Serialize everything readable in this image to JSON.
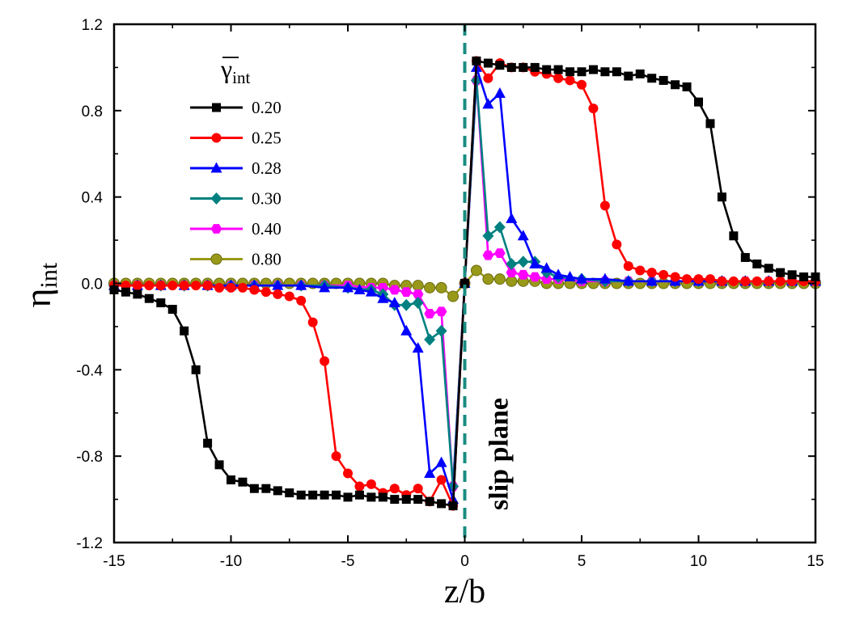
{
  "chart_data": {
    "type": "line",
    "title": "",
    "xlabel": "z/b",
    "ylabel": {
      "main": "η",
      "sub": "int"
    },
    "xlim": [
      -15,
      15
    ],
    "ylim": [
      -1.2,
      1.2
    ],
    "xticks": [
      -15,
      -10,
      -5,
      0,
      5,
      10,
      15
    ],
    "xtick_labels": [
      "-15",
      "-10",
      "-5",
      "0",
      "5",
      "10",
      "15"
    ],
    "yticks": [
      -1.2,
      -0.8,
      -0.4,
      0.0,
      0.4,
      0.8,
      1.2
    ],
    "ytick_labels": [
      "-1.2",
      "-0.8",
      "-0.4",
      "0.0",
      "0.4",
      "0.8",
      "1.2"
    ],
    "grid": false,
    "legend": {
      "title": {
        "main": "γ",
        "sub": "int"
      },
      "placement": "top-left"
    },
    "annotation": {
      "text": "slip plane",
      "x": 0,
      "style": "dashed"
    },
    "series": [
      {
        "name": "0.20",
        "color": "#000000",
        "marker": "square",
        "x": [
          -15,
          -14.5,
          -14,
          -13.5,
          -13,
          -12.5,
          -12,
          -11.5,
          -11,
          -10.5,
          -10,
          -9.5,
          -9,
          -8.5,
          -8,
          -7.5,
          -7,
          -6.5,
          -6,
          -5.5,
          -5,
          -4.5,
          -4,
          -3.5,
          -3,
          -2.5,
          -2,
          -1.5,
          -1,
          -0.5,
          0,
          0.5,
          1,
          1.5,
          2,
          2.5,
          3,
          3.5,
          4,
          4.5,
          5,
          5.5,
          6,
          6.5,
          7,
          7.5,
          8,
          8.5,
          9,
          9.5,
          10,
          10.5,
          11,
          11.5,
          12,
          12.5,
          13,
          13.5,
          14,
          14.5,
          15
        ],
        "y": [
          -0.03,
          -0.04,
          -0.05,
          -0.07,
          -0.09,
          -0.12,
          -0.22,
          -0.4,
          -0.74,
          -0.84,
          -0.91,
          -0.92,
          -0.95,
          -0.95,
          -0.96,
          -0.97,
          -0.98,
          -0.98,
          -0.98,
          -0.98,
          -0.99,
          -0.98,
          -0.99,
          -0.99,
          -1.0,
          -1.0,
          -1.0,
          -1.01,
          -1.02,
          -1.03,
          0.0,
          1.03,
          1.02,
          1.01,
          1.0,
          1.0,
          1.0,
          0.99,
          0.99,
          0.98,
          0.98,
          0.99,
          0.98,
          0.98,
          0.96,
          0.97,
          0.95,
          0.94,
          0.92,
          0.91,
          0.84,
          0.74,
          0.4,
          0.22,
          0.12,
          0.09,
          0.07,
          0.05,
          0.04,
          0.03,
          0.03
        ]
      },
      {
        "name": "0.25",
        "color": "#ff0000",
        "marker": "circle",
        "x": [
          -15,
          -14.5,
          -14,
          -13.5,
          -13,
          -12.5,
          -12,
          -11.5,
          -11,
          -10.5,
          -10,
          -9.5,
          -9,
          -8.5,
          -8,
          -7.5,
          -7,
          -6.5,
          -6,
          -5.5,
          -5,
          -4.5,
          -4,
          -3.5,
          -3,
          -2.5,
          -2,
          -1.5,
          -1,
          -0.5,
          0,
          0.5,
          1,
          1.5,
          2,
          2.5,
          3,
          3.5,
          4,
          4.5,
          5,
          5.5,
          6,
          6.5,
          7,
          7.5,
          8,
          8.5,
          9,
          9.5,
          10,
          10.5,
          11,
          11.5,
          12,
          12.5,
          13,
          13.5,
          14,
          14.5,
          15
        ],
        "y": [
          -0.01,
          -0.01,
          -0.01,
          -0.01,
          -0.01,
          -0.01,
          -0.01,
          -0.01,
          -0.01,
          -0.02,
          -0.02,
          -0.02,
          -0.03,
          -0.04,
          -0.05,
          -0.06,
          -0.08,
          -0.18,
          -0.36,
          -0.8,
          -0.88,
          -0.94,
          -0.93,
          -0.97,
          -0.95,
          -0.98,
          -0.95,
          -1.01,
          -0.91,
          -1.03,
          0.0,
          1.03,
          0.95,
          1.02,
          1.0,
          1.0,
          0.98,
          0.97,
          0.95,
          0.94,
          0.92,
          0.81,
          0.36,
          0.18,
          0.08,
          0.06,
          0.05,
          0.04,
          0.03,
          0.02,
          0.02,
          0.02,
          0.01,
          0.01,
          0.01,
          0.01,
          0.01,
          0.01,
          0.01,
          0.01,
          0.01
        ]
      },
      {
        "name": "0.28",
        "color": "#0000ff",
        "marker": "triangle",
        "x": [
          -15,
          -14,
          -13,
          -12,
          -11,
          -10,
          -9,
          -8,
          -7,
          -6,
          -5,
          -4.5,
          -4,
          -3.5,
          -3,
          -2.5,
          -2,
          -1.5,
          -1,
          -0.5,
          0,
          0.5,
          1,
          1.5,
          2,
          2.5,
          3,
          3.5,
          4,
          4.5,
          5,
          6,
          7,
          8,
          9,
          10,
          11,
          12,
          13,
          14,
          15
        ],
        "y": [
          -0.01,
          -0.01,
          -0.01,
          -0.01,
          -0.01,
          -0.01,
          -0.01,
          -0.01,
          -0.01,
          -0.02,
          -0.02,
          -0.03,
          -0.04,
          -0.07,
          -0.09,
          -0.22,
          -0.3,
          -0.88,
          -0.83,
          -1.0,
          0.0,
          1.0,
          0.83,
          0.88,
          0.3,
          0.22,
          0.09,
          0.07,
          0.04,
          0.03,
          0.02,
          0.02,
          0.01,
          0.01,
          0.01,
          0.01,
          0.01,
          0.01,
          0.01,
          0.01,
          0.01
        ]
      },
      {
        "name": "0.30",
        "color": "#008080",
        "marker": "diamond",
        "x": [
          -15,
          -14,
          -13,
          -12,
          -11,
          -10,
          -9,
          -8,
          -7,
          -6,
          -5,
          -4,
          -3.5,
          -3,
          -2.5,
          -2,
          -1.5,
          -1,
          -0.5,
          0,
          0.5,
          1,
          1.5,
          2,
          2.5,
          3,
          3.5,
          4,
          5,
          6,
          7,
          8,
          9,
          10,
          11,
          12,
          13,
          14,
          15
        ],
        "y": [
          -0.01,
          -0.01,
          -0.01,
          -0.01,
          -0.01,
          -0.01,
          -0.01,
          -0.01,
          -0.01,
          -0.01,
          -0.02,
          -0.03,
          -0.05,
          -0.1,
          -0.1,
          -0.09,
          -0.26,
          -0.22,
          -0.94,
          0.0,
          0.94,
          0.22,
          0.26,
          0.09,
          0.1,
          0.1,
          0.05,
          0.03,
          0.02,
          0.01,
          0.01,
          0.01,
          0.01,
          0.01,
          0.01,
          0.01,
          0.01,
          0.01,
          0.01
        ]
      },
      {
        "name": "0.40",
        "color": "#ff00ff",
        "marker": "hexagon",
        "x": [
          -15,
          -14,
          -13,
          -12,
          -11,
          -10,
          -9,
          -8,
          -7,
          -6,
          -5,
          -4,
          -3.5,
          -3,
          -2.5,
          -2,
          -1.5,
          -1,
          -0.5,
          0,
          0.5,
          1,
          1.5,
          2,
          2.5,
          3,
          3.5,
          4,
          5,
          6,
          7,
          8,
          9,
          10,
          11,
          12,
          13,
          14,
          15
        ],
        "y": [
          -0.01,
          -0.01,
          -0.01,
          -0.01,
          -0.01,
          -0.01,
          -0.01,
          -0.01,
          -0.01,
          -0.01,
          -0.01,
          -0.02,
          -0.02,
          -0.03,
          -0.04,
          -0.05,
          -0.14,
          -0.13,
          -0.94,
          0.0,
          0.94,
          0.13,
          0.14,
          0.05,
          0.04,
          0.03,
          0.02,
          0.02,
          0.01,
          0.01,
          0.01,
          0.01,
          0.01,
          0.01,
          0.01,
          0.01,
          0.01,
          0.01,
          0.01
        ]
      },
      {
        "name": "0.80",
        "color": "#999919",
        "marker": "sphere",
        "x": [
          -15,
          -14.5,
          -14,
          -13.5,
          -13,
          -12.5,
          -12,
          -11.5,
          -11,
          -10.5,
          -10,
          -9.5,
          -9,
          -8.5,
          -8,
          -7.5,
          -7,
          -6.5,
          -6,
          -5.5,
          -5,
          -4.5,
          -4,
          -3.5,
          -3,
          -2.5,
          -2,
          -1.5,
          -1,
          -0.5,
          0,
          0.5,
          1,
          1.5,
          2,
          2.5,
          3,
          3.5,
          4,
          4.5,
          5,
          5.5,
          6,
          6.5,
          7,
          7.5,
          8,
          8.5,
          9,
          9.5,
          10,
          10.5,
          11,
          11.5,
          12,
          12.5,
          13,
          13.5,
          14,
          14.5,
          15
        ],
        "y": [
          0.0,
          0.0,
          0.0,
          0.0,
          0.0,
          0.0,
          0.0,
          0.0,
          0.0,
          0.0,
          0.0,
          0.0,
          0.0,
          0.0,
          0.0,
          0.0,
          0.0,
          0.0,
          0.0,
          0.0,
          0.0,
          0.0,
          0.0,
          0.0,
          -0.01,
          -0.01,
          -0.01,
          -0.02,
          -0.02,
          -0.06,
          0.0,
          0.06,
          0.02,
          0.02,
          0.01,
          0.01,
          0.01,
          0.0,
          0.0,
          0.0,
          0.0,
          0.0,
          0.0,
          0.0,
          0.0,
          0.0,
          0.0,
          0.0,
          0.0,
          0.0,
          0.0,
          0.0,
          0.0,
          0.0,
          0.0,
          0.0,
          0.0,
          0.0,
          0.0,
          0.0,
          0.0
        ]
      }
    ]
  }
}
